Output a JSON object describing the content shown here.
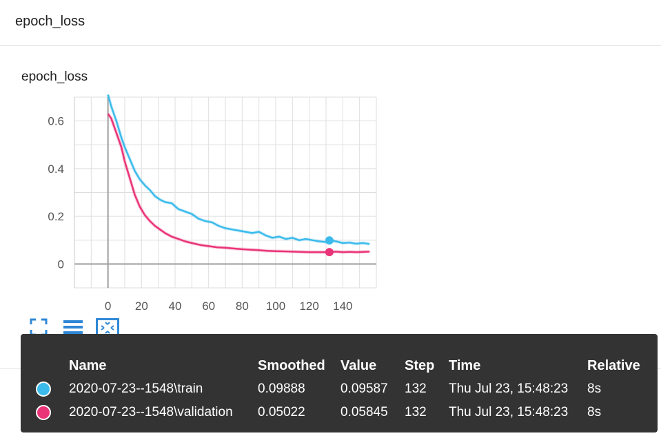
{
  "header": {
    "title": "epoch_loss"
  },
  "card": {
    "title": "epoch_loss"
  },
  "colors": {
    "train": "#3bbbec",
    "validation": "#ea3478"
  },
  "toolbar": {
    "icons": [
      "fullscreen-icon",
      "menu-lines-icon",
      "fit-domain-icon"
    ]
  },
  "chart_data": {
    "type": "line",
    "title": "epoch_loss",
    "xlabel": "",
    "ylabel": "",
    "xlim": [
      -20,
      160
    ],
    "ylim": [
      -0.1,
      0.7
    ],
    "x_ticks": [
      0,
      20,
      40,
      60,
      80,
      100,
      120,
      140
    ],
    "y_ticks": [
      0,
      0.2,
      0.4,
      0.6
    ],
    "y_tick_labels": [
      "0",
      "0.2",
      "0.4",
      "0.6"
    ],
    "grid": true,
    "legend": "none",
    "series": [
      {
        "name": "2020-07-23--1548\\train",
        "color": "#3bbbec",
        "points": [
          [
            0,
            0.71
          ],
          [
            2,
            0.66
          ],
          [
            5,
            0.6
          ],
          [
            8,
            0.53
          ],
          [
            10,
            0.49
          ],
          [
            13,
            0.44
          ],
          [
            16,
            0.39
          ],
          [
            19,
            0.355
          ],
          [
            22,
            0.33
          ],
          [
            25,
            0.31
          ],
          [
            28,
            0.285
          ],
          [
            31,
            0.27
          ],
          [
            34,
            0.26
          ],
          [
            38,
            0.255
          ],
          [
            42,
            0.23
          ],
          [
            46,
            0.22
          ],
          [
            50,
            0.21
          ],
          [
            54,
            0.19
          ],
          [
            58,
            0.18
          ],
          [
            62,
            0.175
          ],
          [
            66,
            0.16
          ],
          [
            70,
            0.15
          ],
          [
            74,
            0.145
          ],
          [
            78,
            0.14
          ],
          [
            82,
            0.135
          ],
          [
            86,
            0.13
          ],
          [
            90,
            0.135
          ],
          [
            94,
            0.12
          ],
          [
            98,
            0.11
          ],
          [
            102,
            0.115
          ],
          [
            106,
            0.105
          ],
          [
            110,
            0.11
          ],
          [
            114,
            0.1
          ],
          [
            118,
            0.105
          ],
          [
            122,
            0.1
          ],
          [
            126,
            0.095
          ],
          [
            130,
            0.092
          ],
          [
            132,
            0.099
          ],
          [
            136,
            0.095
          ],
          [
            140,
            0.088
          ],
          [
            144,
            0.09
          ],
          [
            148,
            0.085
          ],
          [
            152,
            0.088
          ],
          [
            156,
            0.084
          ]
        ]
      },
      {
        "name": "2020-07-23--1548\\validation",
        "color": "#ea3478",
        "points": [
          [
            0,
            0.63
          ],
          [
            2,
            0.61
          ],
          [
            5,
            0.55
          ],
          [
            8,
            0.49
          ],
          [
            10,
            0.43
          ],
          [
            13,
            0.36
          ],
          [
            16,
            0.29
          ],
          [
            19,
            0.24
          ],
          [
            22,
            0.205
          ],
          [
            25,
            0.18
          ],
          [
            28,
            0.16
          ],
          [
            31,
            0.145
          ],
          [
            34,
            0.13
          ],
          [
            38,
            0.115
          ],
          [
            42,
            0.105
          ],
          [
            46,
            0.095
          ],
          [
            50,
            0.088
          ],
          [
            55,
            0.08
          ],
          [
            60,
            0.075
          ],
          [
            65,
            0.07
          ],
          [
            70,
            0.068
          ],
          [
            75,
            0.065
          ],
          [
            80,
            0.062
          ],
          [
            85,
            0.06
          ],
          [
            90,
            0.058
          ],
          [
            95,
            0.055
          ],
          [
            100,
            0.054
          ],
          [
            105,
            0.053
          ],
          [
            110,
            0.052
          ],
          [
            115,
            0.051
          ],
          [
            120,
            0.05
          ],
          [
            125,
            0.05
          ],
          [
            130,
            0.05
          ],
          [
            132,
            0.05
          ],
          [
            136,
            0.052
          ],
          [
            140,
            0.05
          ],
          [
            144,
            0.051
          ],
          [
            148,
            0.05
          ],
          [
            152,
            0.051
          ],
          [
            156,
            0.052
          ]
        ]
      }
    ],
    "highlight_step": 132
  },
  "tooltip": {
    "headers": [
      "Name",
      "Smoothed",
      "Value",
      "Step",
      "Time",
      "Relative"
    ],
    "rows": [
      {
        "name": "2020-07-23--1548\\train",
        "smoothed": "0.09888",
        "value": "0.09587",
        "step": "132",
        "time": "Thu Jul 23, 15:48:23",
        "relative": "8s"
      },
      {
        "name": "2020-07-23--1548\\validation",
        "smoothed": "0.05022",
        "value": "0.05845",
        "step": "132",
        "time": "Thu Jul 23, 15:48:23",
        "relative": "8s"
      }
    ]
  }
}
